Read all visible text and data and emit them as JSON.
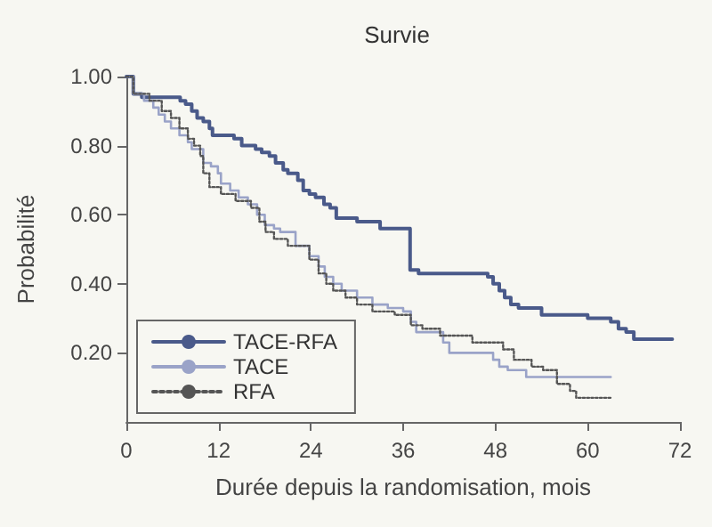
{
  "chart_data": {
    "type": "step",
    "title": "Survie",
    "xlabel": "Durée depuis la randomisation, mois",
    "ylabel": "Probabilité",
    "xlim": [
      0,
      72
    ],
    "xticks": [
      0,
      12,
      24,
      36,
      48,
      60,
      72
    ],
    "ylim": [
      0,
      1
    ],
    "yticks": [
      {
        "value": 0.2,
        "label": "0.20"
      },
      {
        "value": 0.4,
        "label": "0.40"
      },
      {
        "value": 0.6,
        "label": "0.60"
      },
      {
        "value": 0.8,
        "label": "0.80"
      },
      {
        "value": 1,
        "label": "1.00"
      }
    ],
    "grid": false,
    "legend": "bottom left",
    "marker": "none",
    "series": [
      {
        "name": "TACE-RFA",
        "color": "#4a5a8a",
        "line_style": "solid",
        "x": [
          0,
          0.9,
          2,
          7,
          7.7,
          8.5,
          9.2,
          10,
          10.8,
          11.2,
          14,
          15,
          16.8,
          17.6,
          18.6,
          19.4,
          20.4,
          21,
          22.3,
          23,
          23.8,
          24.6,
          25.7,
          26.5,
          27.3,
          30,
          33,
          35,
          36.9,
          38,
          47,
          47.7,
          48.5,
          49.2,
          50,
          51,
          54,
          55,
          60,
          63,
          64,
          65,
          66,
          71
        ],
        "values": [
          1,
          0.95,
          0.94,
          0.93,
          0.92,
          0.9,
          0.88,
          0.87,
          0.85,
          0.83,
          0.82,
          0.8,
          0.79,
          0.78,
          0.77,
          0.75,
          0.73,
          0.72,
          0.7,
          0.67,
          0.66,
          0.65,
          0.63,
          0.62,
          0.59,
          0.58,
          0.56,
          0.56,
          0.44,
          0.43,
          0.42,
          0.4,
          0.38,
          0.36,
          0.34,
          0.33,
          0.31,
          0.31,
          0.3,
          0.29,
          0.27,
          0.26,
          0.24,
          0.24
        ]
      },
      {
        "name": "TACE",
        "color": "#9aa3c8",
        "line_style": "solid",
        "x": [
          0,
          0.9,
          2.3,
          3.5,
          4.2,
          5,
          5.8,
          6.9,
          8,
          8.5,
          10,
          11,
          11.9,
          12.3,
          13.5,
          14.6,
          15.8,
          17,
          18,
          19.2,
          20,
          22,
          23.8,
          25,
          25.8,
          26.9,
          28,
          30,
          32,
          34,
          36,
          37,
          37.7,
          41.2,
          42,
          47.7,
          48.5,
          49.6,
          52,
          63
        ],
        "values": [
          1,
          0.95,
          0.93,
          0.91,
          0.89,
          0.87,
          0.85,
          0.83,
          0.81,
          0.79,
          0.75,
          0.74,
          0.72,
          0.69,
          0.67,
          0.65,
          0.63,
          0.6,
          0.57,
          0.56,
          0.55,
          0.51,
          0.48,
          0.45,
          0.42,
          0.4,
          0.38,
          0.36,
          0.34,
          0.33,
          0.32,
          0.29,
          0.26,
          0.23,
          0.2,
          0.18,
          0.16,
          0.15,
          0.13,
          0.13
        ]
      },
      {
        "name": "RFA",
        "color": "#555555",
        "line_style": "dotted",
        "x": [
          0,
          0.9,
          3,
          4.6,
          5.8,
          6.9,
          8,
          8.8,
          9.6,
          10,
          10.8,
          12.3,
          14.2,
          16.2,
          17.3,
          18.1,
          19.2,
          21,
          23.8,
          25,
          26,
          26.9,
          28.5,
          30,
          32,
          34.9,
          37,
          38.5,
          40.8,
          45,
          49,
          50.4,
          52.7,
          54.2,
          56,
          57.7,
          58.5,
          63
        ],
        "values": [
          1,
          0.95,
          0.93,
          0.9,
          0.88,
          0.85,
          0.82,
          0.8,
          0.77,
          0.72,
          0.68,
          0.66,
          0.64,
          0.62,
          0.58,
          0.55,
          0.53,
          0.51,
          0.47,
          0.43,
          0.4,
          0.38,
          0.36,
          0.34,
          0.32,
          0.31,
          0.28,
          0.27,
          0.25,
          0.23,
          0.21,
          0.18,
          0.16,
          0.15,
          0.11,
          0.09,
          0.07,
          0.07
        ]
      }
    ]
  }
}
